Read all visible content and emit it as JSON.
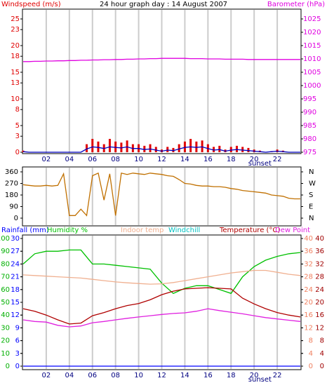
{
  "chart_data": [
    {
      "type": "line",
      "title": "24 hour graph day : 14 August 2007",
      "ylabel": "Windspeed (m/s)",
      "y2label": "Barometer (hPa)",
      "ycolor": "#e00000",
      "y2color": "#e000e0",
      "xlim": [
        0,
        24
      ],
      "xticks": [
        {
          "value": 2,
          "label": "02"
        },
        {
          "value": 4,
          "label": "04"
        },
        {
          "value": 6,
          "label": "06"
        },
        {
          "value": 8,
          "label": "08"
        },
        {
          "value": 10,
          "label": "10"
        },
        {
          "value": 12,
          "label": "12"
        },
        {
          "value": 14,
          "label": "14"
        },
        {
          "value": 16,
          "label": "16"
        },
        {
          "value": 18,
          "label": "18"
        },
        {
          "value": 20,
          "label": "20"
        },
        {
          "value": 22,
          "label": "22"
        }
      ],
      "sunset": {
        "label": "sunset",
        "x": 20.5
      },
      "ylim": [
        0,
        25
      ],
      "yticks": [
        0,
        3,
        5,
        8,
        10,
        13,
        15,
        18,
        20,
        23,
        25
      ],
      "y2lim": [
        975,
        1025
      ],
      "y2ticks": [
        975,
        980,
        985,
        990,
        995,
        1000,
        1005,
        1010,
        1015,
        1020,
        1025
      ],
      "grid": true,
      "x": [
        0,
        0.5,
        1,
        1.5,
        2,
        2.5,
        3,
        3.5,
        4,
        4.5,
        5,
        5.5,
        6,
        6.5,
        7,
        7.5,
        8,
        8.5,
        9,
        9.5,
        10,
        10.5,
        11,
        11.5,
        12,
        12.5,
        13,
        13.5,
        14,
        14.5,
        15,
        15.5,
        16,
        16.5,
        17,
        17.5,
        18,
        18.5,
        19,
        19.5,
        20,
        20.5,
        21,
        21.5,
        22,
        22.5,
        23,
        23.5,
        24
      ],
      "series": [
        {
          "type": "bar",
          "color": "#e00000",
          "values": [
            0.3,
            0,
            0,
            0,
            0,
            0,
            0,
            0,
            0,
            0,
            0,
            1.5,
            2.5,
            2,
            1.5,
            2.5,
            2,
            1.8,
            2.2,
            1.5,
            1.5,
            1.2,
            1.5,
            1,
            0.5,
            1,
            0.8,
            1.5,
            2,
            2.5,
            2,
            2.2,
            1.5,
            1,
            1.2,
            0.5,
            1,
            1.2,
            1,
            0.8,
            0.5,
            0.3,
            0,
            0.2,
            0.5,
            0.3,
            0,
            0,
            0
          ]
        },
        {
          "type": "line",
          "color": "#0000c0",
          "values": [
            0.1,
            0,
            0,
            0,
            0,
            0,
            0,
            0,
            0,
            0,
            0,
            0.6,
            1,
            0.9,
            0.7,
            1,
            0.9,
            0.8,
            1,
            0.7,
            0.7,
            0.5,
            0.6,
            0.4,
            0.2,
            0.4,
            0.3,
            0.6,
            0.9,
            1,
            0.9,
            1,
            0.7,
            0.4,
            0.5,
            0.2,
            0.4,
            0.5,
            0.4,
            0.3,
            0.2,
            0.1,
            0,
            0.1,
            0.2,
            0.1,
            0,
            0,
            0
          ]
        },
        {
          "type": "line",
          "axis": "y2",
          "color": "#e000e0",
          "values": [
            1009.0,
            1009.0,
            1009.1,
            1009.1,
            1009.2,
            1009.2,
            1009.3,
            1009.3,
            1009.4,
            1009.4,
            1009.5,
            1009.5,
            1009.6,
            1009.6,
            1009.7,
            1009.7,
            1009.8,
            1009.8,
            1009.9,
            1009.9,
            1010.0,
            1010.0,
            1010.1,
            1010.1,
            1010.2,
            1010.2,
            1010.2,
            1010.2,
            1010.2,
            1010.1,
            1010.1,
            1010.1,
            1010.0,
            1010.0,
            1010.0,
            1009.9,
            1009.9,
            1009.9,
            1009.9,
            1009.8,
            1009.8,
            1009.8,
            1009.8,
            1009.8,
            1009.8,
            1009.8,
            1009.8,
            1009.8,
            1009.8
          ]
        }
      ]
    },
    {
      "type": "line",
      "ycolor": "#000000",
      "y2color": "#000000",
      "xlim": [
        0,
        24
      ],
      "xticks": [
        2,
        4,
        6,
        8,
        10,
        12,
        14,
        16,
        18,
        20,
        22
      ],
      "ylim": [
        0,
        360
      ],
      "yticks": [
        0,
        90,
        180,
        270,
        360
      ],
      "y2lim": [
        0,
        360
      ],
      "y2ticks": [
        {
          "value": 0,
          "label": "N"
        },
        {
          "value": 90,
          "label": "E"
        },
        {
          "value": 180,
          "label": "S"
        },
        {
          "value": 270,
          "label": "W"
        },
        {
          "value": 360,
          "label": "N"
        }
      ],
      "grid": true,
      "x": [
        0,
        0.5,
        1,
        1.5,
        2,
        2.5,
        3,
        3.5,
        4,
        4.5,
        5,
        5.5,
        6,
        6.5,
        7,
        7.5,
        8,
        8.5,
        9,
        9.5,
        10,
        10.5,
        11,
        11.5,
        12,
        12.5,
        13,
        13.5,
        14,
        14.5,
        15,
        15.5,
        16,
        16.5,
        17,
        17.5,
        18,
        18.5,
        19,
        19.5,
        20,
        20.5,
        21,
        21.5,
        22,
        22.5,
        23,
        23.5,
        24
      ],
      "series": [
        {
          "type": "line",
          "color": "#c07000",
          "values": [
            260,
            255,
            250,
            250,
            255,
            250,
            255,
            345,
            20,
            20,
            70,
            20,
            330,
            350,
            140,
            345,
            20,
            350,
            340,
            350,
            345,
            340,
            350,
            345,
            340,
            330,
            325,
            300,
            270,
            265,
            255,
            250,
            250,
            245,
            245,
            240,
            230,
            225,
            215,
            210,
            205,
            200,
            195,
            180,
            175,
            170,
            155,
            150,
            150
          ]
        }
      ]
    },
    {
      "type": "line",
      "ylabel": "Rainfall (mm)",
      "annotation": "Windchill",
      "annotation_color": "#00c0c0",
      "ycolor": "#0000ff",
      "y3color": "#00b000",
      "y2colors": [
        "#f08060",
        "#a00000"
      ],
      "xlim": [
        0,
        24
      ],
      "xticks": [
        {
          "value": 2,
          "label": "02"
        },
        {
          "value": 4,
          "label": "04"
        },
        {
          "value": 6,
          "label": "06"
        },
        {
          "value": 8,
          "label": "08"
        },
        {
          "value": 10,
          "label": "10"
        },
        {
          "value": 12,
          "label": "12"
        },
        {
          "value": 14,
          "label": "14"
        },
        {
          "value": 16,
          "label": "16"
        },
        {
          "value": 18,
          "label": "18"
        },
        {
          "value": 20,
          "label": "20"
        },
        {
          "value": 22,
          "label": "22"
        }
      ],
      "sunset": {
        "label": "sunset",
        "x": 20.5
      },
      "ylim": [
        0,
        30
      ],
      "yticks": [
        0,
        3,
        6,
        9,
        12,
        15,
        18,
        21,
        24,
        27,
        30
      ],
      "y3lim": [
        0,
        100
      ],
      "y3ticks": [
        0,
        10,
        20,
        30,
        40,
        50,
        60,
        70,
        80,
        90,
        100
      ],
      "y2lim": [
        0,
        40
      ],
      "y2ticks": [
        0,
        4,
        8,
        12,
        16,
        20,
        24,
        28,
        32,
        36,
        40
      ],
      "grid": true,
      "x": [
        0,
        1,
        2,
        3,
        4,
        5,
        6,
        7,
        8,
        9,
        10,
        11,
        12,
        13,
        14,
        15,
        16,
        17,
        18,
        19,
        20,
        21,
        22,
        23,
        24
      ],
      "series": [
        {
          "type": "line",
          "color": "#0000ff",
          "values": [
            0,
            0,
            0,
            0,
            0,
            0,
            0,
            0,
            0,
            0,
            0,
            0,
            0,
            0,
            0,
            0,
            0,
            0,
            0,
            0,
            0,
            0,
            0,
            0,
            0
          ]
        },
        {
          "name": "Humidity %",
          "type": "line",
          "axis": "y3",
          "color": "#00c000",
          "values": [
            80,
            88,
            90,
            90,
            91,
            91,
            80,
            80,
            79,
            78,
            77,
            76,
            65,
            57,
            61,
            63,
            63,
            60,
            57,
            70,
            78,
            83,
            86,
            88,
            89
          ]
        },
        {
          "name": "Indoor temp",
          "type": "line",
          "axis": "y2",
          "color": "#f0b090",
          "values": [
            28.6,
            28.4,
            28.2,
            28,
            27.8,
            27.6,
            27.2,
            26.8,
            26.4,
            26.1,
            25.9,
            25.7,
            25.8,
            26.2,
            26.8,
            27.4,
            28,
            28.6,
            29.2,
            29.6,
            30,
            30,
            29.4,
            28.8,
            28.4
          ]
        },
        {
          "name": "Temperature (°C)",
          "type": "line",
          "axis": "y2",
          "color": "#b00000",
          "values": [
            18,
            17.2,
            16,
            14.5,
            13.2,
            13.5,
            15.8,
            16.8,
            18,
            19,
            19.6,
            20.8,
            22.4,
            23.5,
            24.2,
            24.4,
            24.6,
            24.4,
            24.2,
            21.3,
            19.5,
            18,
            16.8,
            16,
            15.4
          ]
        },
        {
          "name": "Dew Point",
          "type": "line",
          "axis": "y2",
          "color": "#e020e0",
          "values": [
            14.5,
            14,
            13.8,
            12.8,
            12.3,
            12.6,
            13.6,
            14,
            14.5,
            15,
            15.4,
            15.8,
            16.2,
            16.5,
            16.7,
            17.2,
            18,
            17.4,
            16.9,
            16.4,
            15.8,
            15.2,
            14.8,
            14.4,
            14
          ]
        }
      ]
    }
  ]
}
